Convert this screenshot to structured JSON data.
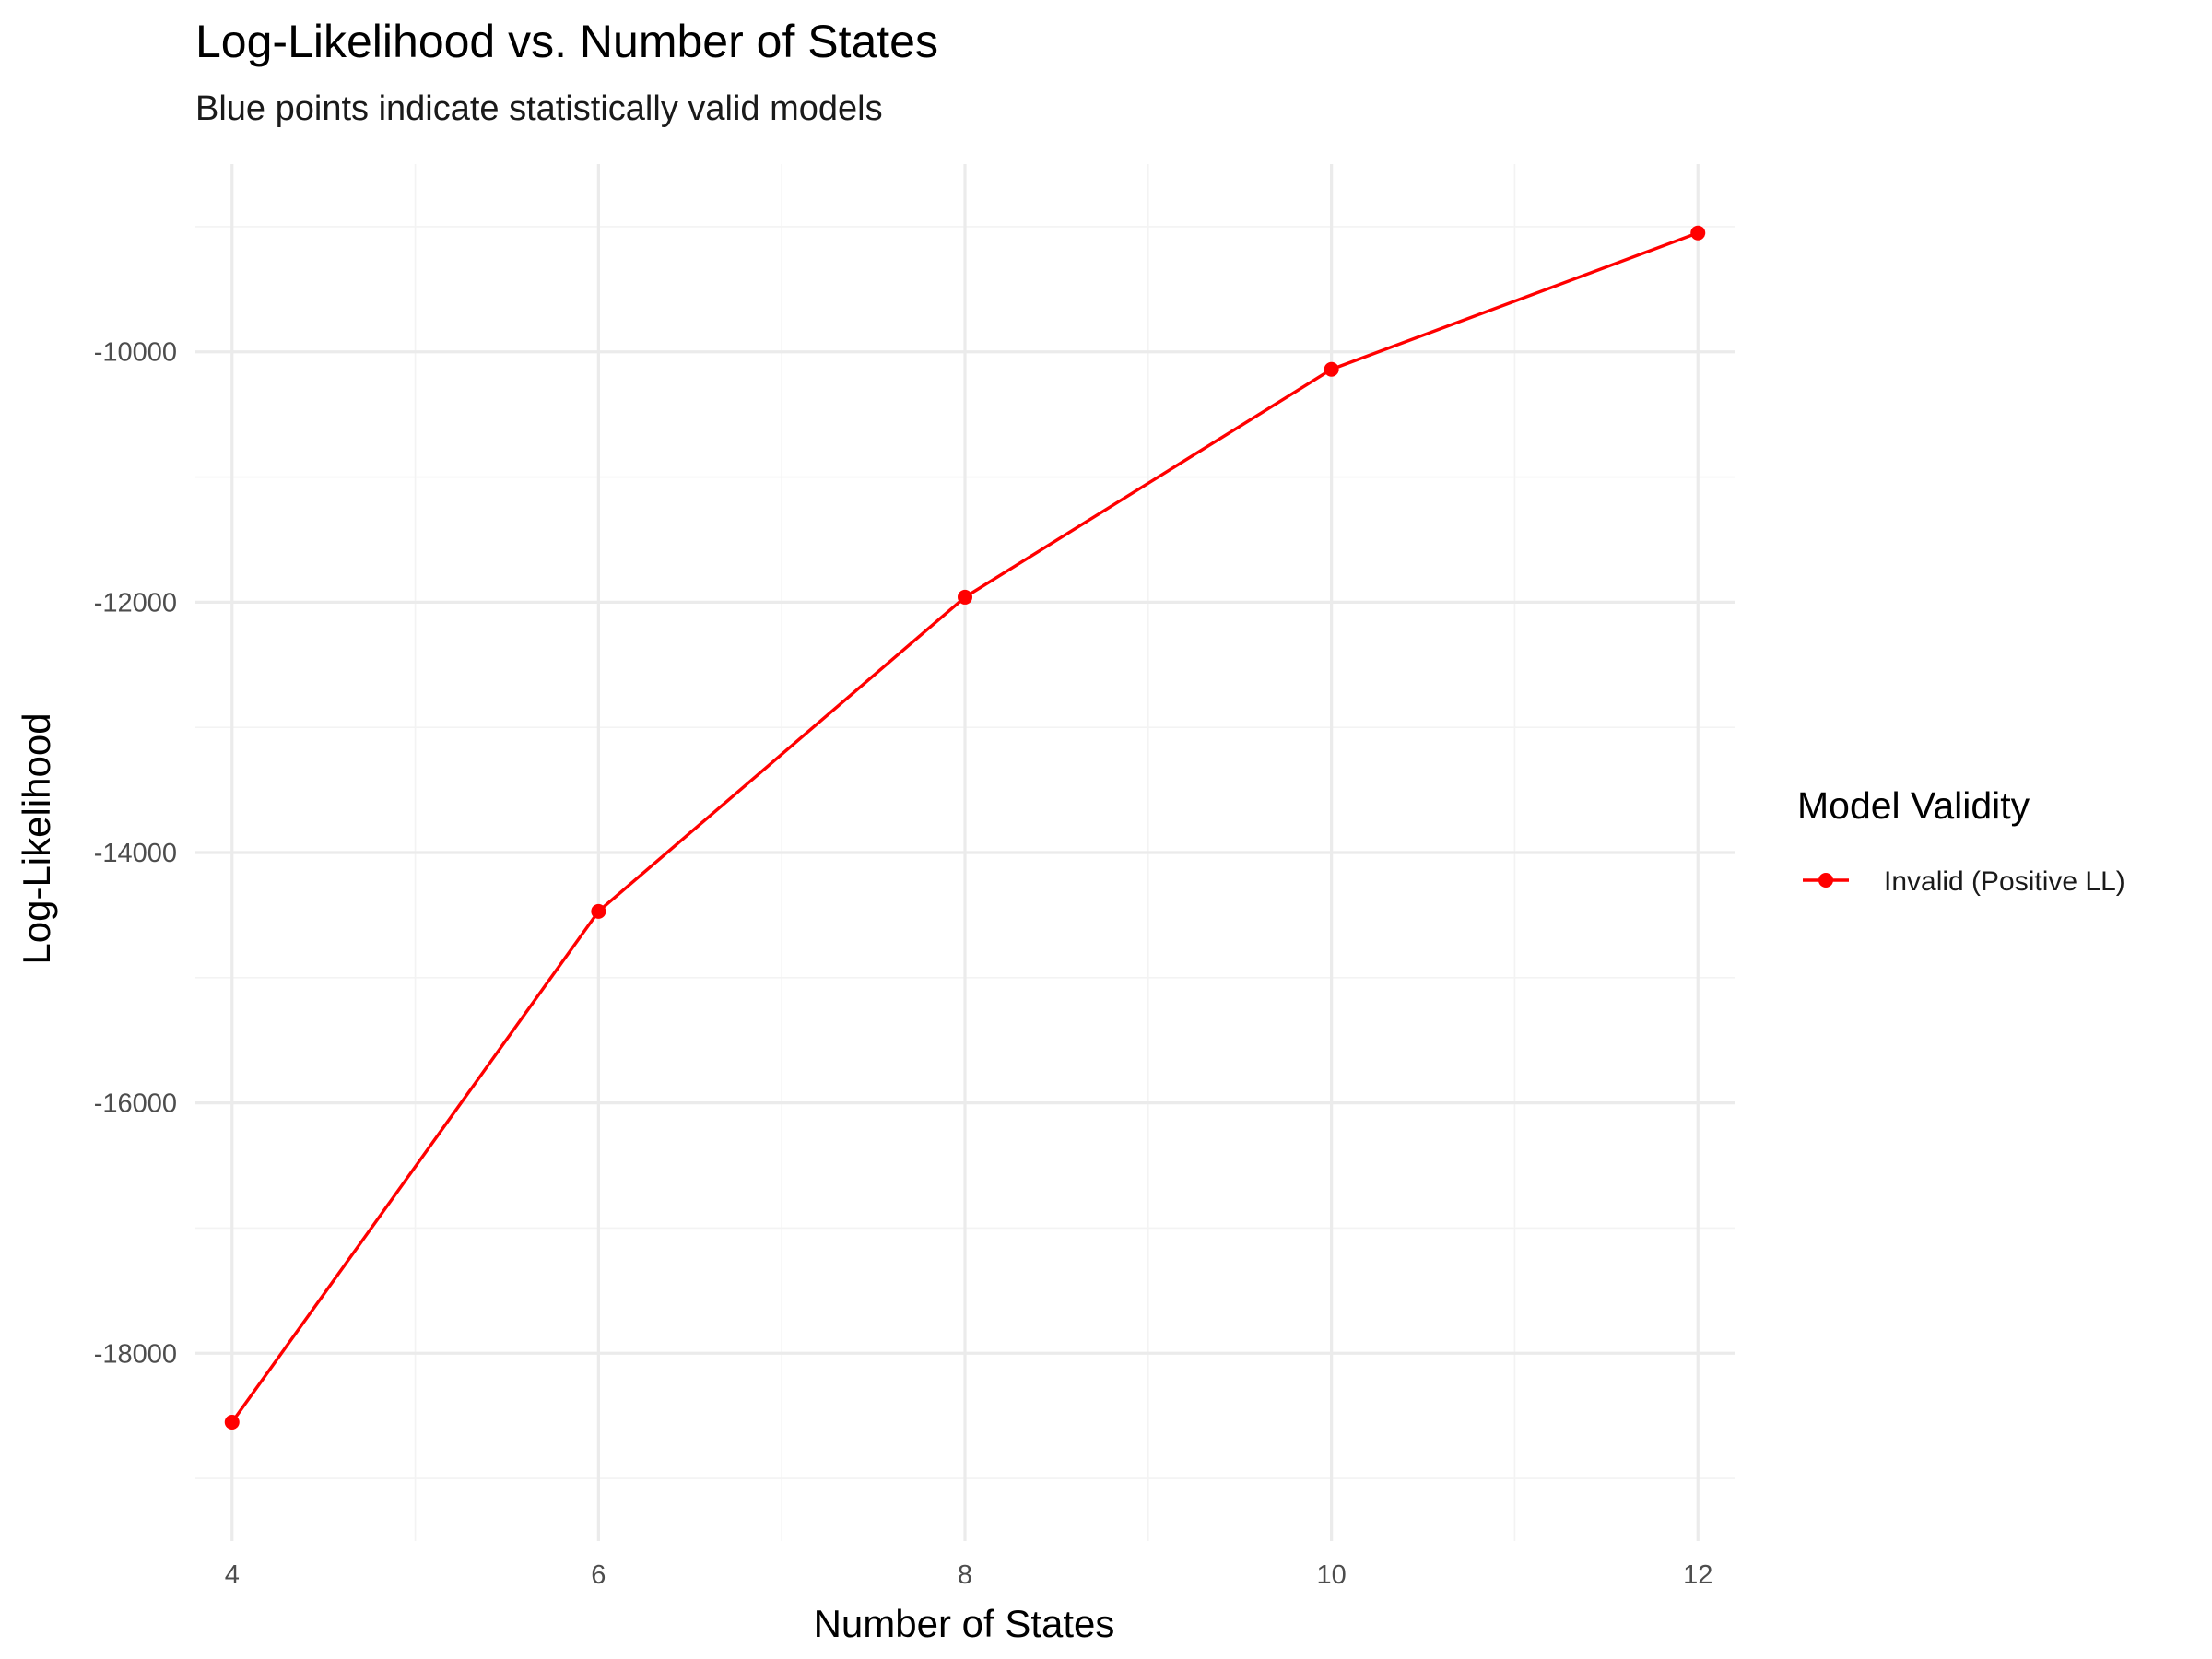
{
  "chart_data": {
    "type": "line",
    "title": "Log-Likelihood vs. Number of States",
    "subtitle": "Blue points indicate statistically valid models",
    "xlabel": "Number of States",
    "ylabel": "Log-Likelihood",
    "xlim": [
      3.8,
      12.2
    ],
    "ylim": [
      -19500,
      -8500
    ],
    "x_ticks": [
      4,
      6,
      8,
      10,
      12
    ],
    "x_tick_labels": [
      "4",
      "6",
      "8",
      "10",
      "12"
    ],
    "x_minor_ticks": [
      5,
      7,
      9,
      11
    ],
    "y_ticks": [
      -18000,
      -16000,
      -14000,
      -12000,
      -10000
    ],
    "y_tick_labels": [
      "-18000",
      "-16000",
      "-14000",
      "-12000",
      "-10000"
    ],
    "y_minor_ticks": [
      -19000,
      -17000,
      -15000,
      -13000,
      -11000,
      -9000
    ],
    "grid": true,
    "legend": {
      "title": "Model Validity",
      "placement": "right"
    },
    "series": [
      {
        "name": "Invalid (Positive LL)",
        "color": "#ff0000",
        "x": [
          4,
          6,
          8,
          10,
          12
        ],
        "y": [
          -18550,
          -14470,
          -11960,
          -10140,
          -9050
        ]
      }
    ]
  }
}
